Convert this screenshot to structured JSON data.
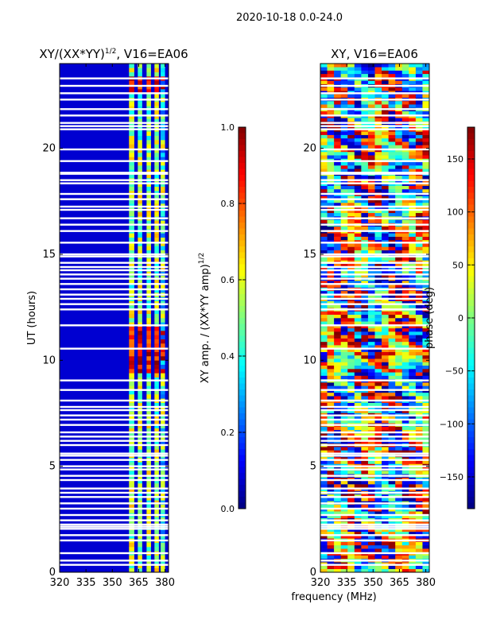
{
  "suptitle": "2020-10-18 0.0-24.0",
  "colors": {
    "jet": [
      "#00007f",
      "#0000ff",
      "#007fff",
      "#00ffff",
      "#7fff7f",
      "#ffff00",
      "#ff7f00",
      "#ff0000",
      "#7f0000"
    ]
  },
  "chart_data": [
    {
      "type": "heatmap",
      "title": "XY/(XX*YY)^{1/2}, V16=EA06",
      "title_main": "XY/(XX*YY)",
      "title_sup": "1/2",
      "title_tail": ", V16=EA06",
      "xlabel": "",
      "ylabel": "UT (hours)",
      "xlim": [
        320,
        382
      ],
      "ylim": [
        0,
        24
      ],
      "xticks": [
        "320",
        "335",
        "350",
        "365",
        "380"
      ],
      "xtick_values": [
        320,
        335,
        350,
        365,
        380
      ],
      "yticks": [
        "0",
        "5",
        "10",
        "15",
        "20"
      ],
      "ytick_values": [
        0,
        5,
        10,
        15,
        20
      ],
      "description_values": {
        "background_amp": 0.08,
        "active_channels_mhz": [
          [
            359.5,
            362.5
          ],
          [
            364.5,
            367.0
          ],
          [
            369.5,
            372.0
          ],
          [
            374.0,
            376.5
          ],
          [
            377.5,
            380.0
          ]
        ],
        "strong_time_ranges_hours": [
          [
            9.5,
            11.6
          ],
          [
            22.6,
            23.4
          ]
        ]
      },
      "colorbar": {
        "label_main": "XY amp. / (XX*YY amp)",
        "label_sup": "1/2",
        "label": "XY amp. / (XX*YY amp)^{1/2}",
        "range": [
          0.0,
          1.0
        ],
        "ticks": [
          "0.0",
          "0.2",
          "0.4",
          "0.6",
          "0.8",
          "1.0"
        ],
        "tick_values": [
          0.0,
          0.2,
          0.4,
          0.6,
          0.8,
          1.0
        ]
      }
    },
    {
      "type": "heatmap",
      "title": "XY, V16=EA06",
      "xlabel": "frequency (MHz)",
      "ylabel": "",
      "xlim": [
        320,
        382
      ],
      "ylim": [
        0,
        24
      ],
      "xticks": [
        "320",
        "335",
        "350",
        "365",
        "380"
      ],
      "xtick_values": [
        320,
        335,
        350,
        365,
        380
      ],
      "yticks": [
        "0",
        "5",
        "10",
        "15",
        "20"
      ],
      "ytick_values": [
        0,
        5,
        10,
        15,
        20
      ],
      "colorbar": {
        "label": "phase (deg)",
        "range": [
          -180,
          180
        ],
        "ticks": [
          "−150",
          "−100",
          "−50",
          "0",
          "50",
          "100",
          "150"
        ],
        "tick_values": [
          -150,
          -100,
          -50,
          0,
          50,
          100,
          150
        ]
      }
    }
  ],
  "flagged_rows_hours": [
    0.35,
    0.55,
    0.9,
    1.5,
    1.75,
    2.05,
    2.15,
    2.25,
    2.45,
    2.7,
    3.0,
    3.25,
    3.55,
    3.75,
    3.95,
    4.35,
    4.55,
    4.85,
    5.0,
    5.3,
    5.5,
    5.6,
    6.0,
    6.2,
    6.4,
    6.6,
    6.95,
    7.2,
    7.4,
    7.65,
    7.8,
    8.1,
    8.6,
    9.05,
    10.55,
    11.65,
    12.4,
    12.65,
    12.9,
    13.1,
    13.35,
    13.6,
    13.85,
    14.05,
    14.25,
    14.4,
    14.6,
    14.9,
    15.0,
    15.55,
    16.1,
    16.4,
    16.7,
    17.1,
    17.25,
    17.6,
    17.85,
    18.35,
    18.5,
    18.8,
    18.85,
    19.4,
    19.95,
    20.9,
    21.05,
    21.2,
    21.55,
    21.85,
    22.3,
    22.6,
    22.95,
    23.3
  ]
}
